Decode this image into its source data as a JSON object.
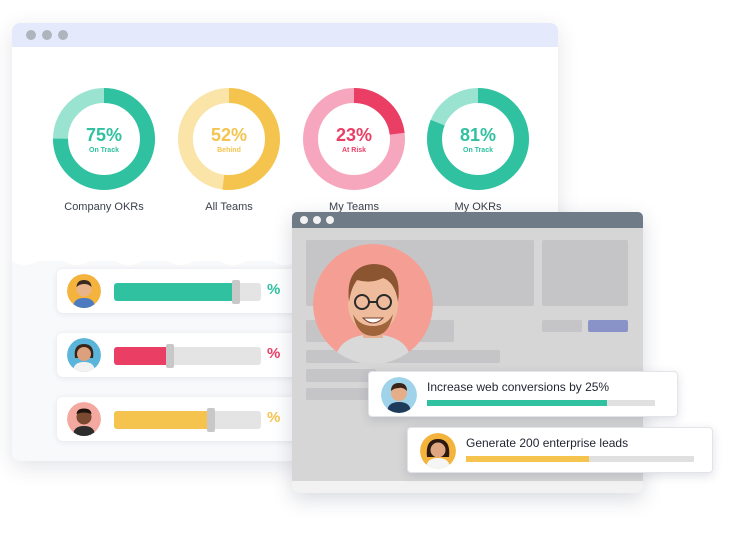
{
  "colors": {
    "teal": "#2fc1a0",
    "teal_light": "#9be3d1",
    "yellow": "#f4c44e",
    "yellow_light": "#fae4a8",
    "red": "#ea3e65",
    "pink_light": "#f6a7bd"
  },
  "summary": [
    {
      "label": "Company OKRs",
      "percent": "75%",
      "value": 75,
      "status": "On Track"
    },
    {
      "label": "All Teams",
      "percent": "52%",
      "value": 52,
      "status": "Behind"
    },
    {
      "label": "My Teams",
      "percent": "23%",
      "value": 23,
      "status": "At Risk"
    },
    {
      "label": "My OKRs",
      "percent": "81%",
      "value": 81,
      "status": "On Track"
    }
  ],
  "progress_rows": [
    {
      "symbol": "%",
      "progress": 0.83,
      "avatar": "person-avatar"
    },
    {
      "symbol": "%",
      "progress": 0.38,
      "avatar": "person-avatar"
    },
    {
      "symbol": "%",
      "progress": 0.66,
      "avatar": "person-avatar"
    }
  ],
  "goals": [
    {
      "text": "Increase web conversions by 25%",
      "progress": 0.79
    },
    {
      "text": "Generate 200 enterprise leads",
      "progress": 0.54
    }
  ]
}
